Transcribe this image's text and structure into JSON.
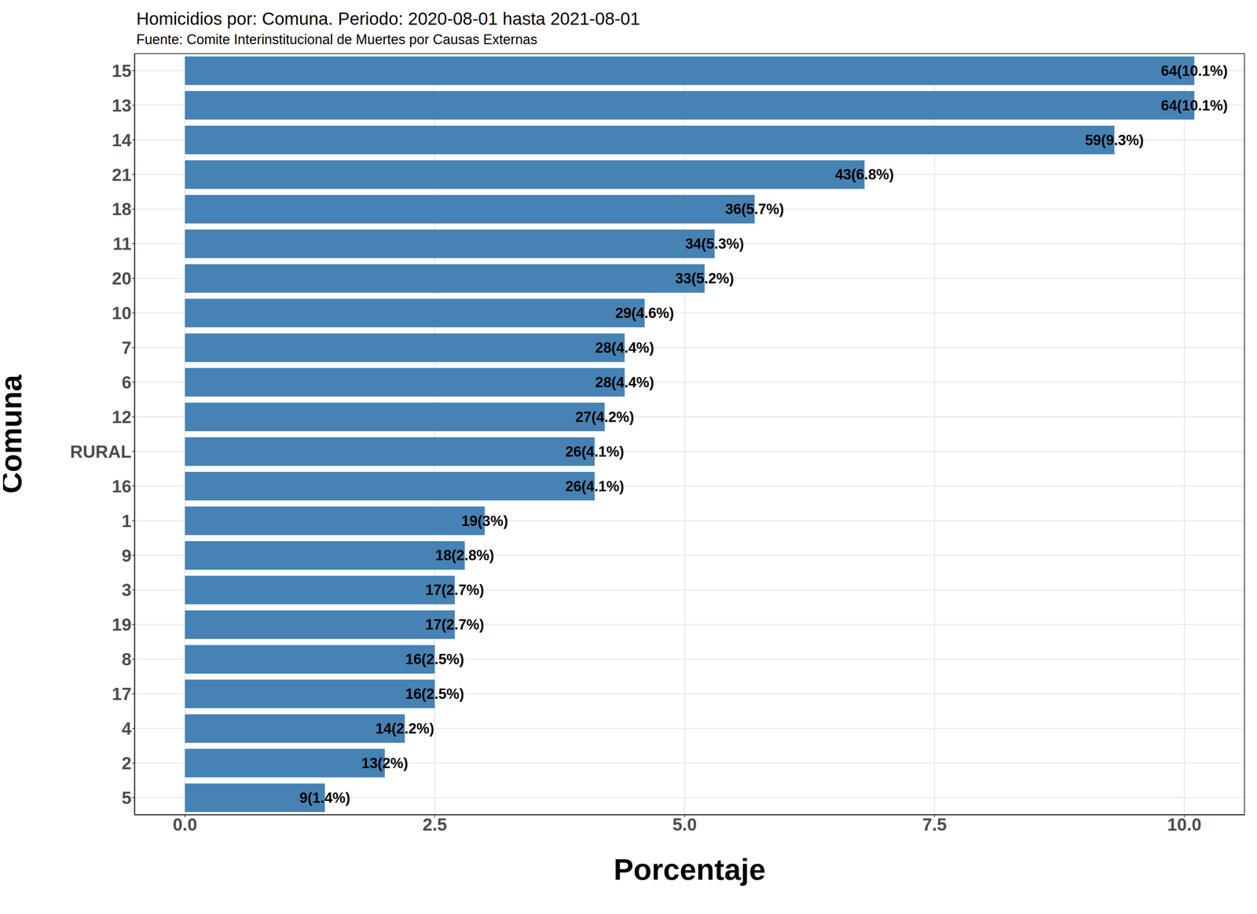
{
  "chart_data": {
    "type": "bar",
    "orientation": "horizontal",
    "title": "Homicidios por: Comuna. Periodo: 2020-08-01 hasta 2021-08-01",
    "subtitle": "Fuente: Comite Interinstitucional de Muertes por Causas Externas",
    "xlabel": "Porcentaje",
    "ylabel": "Comuna",
    "categories": [
      "15",
      "13",
      "14",
      "21",
      "18",
      "11",
      "20",
      "10",
      "7",
      "6",
      "12",
      "RURAL",
      "16",
      "1",
      "9",
      "3",
      "19",
      "8",
      "17",
      "4",
      "2",
      "5"
    ],
    "values": [
      10.1,
      10.1,
      9.3,
      6.8,
      5.7,
      5.3,
      5.2,
      4.6,
      4.4,
      4.4,
      4.2,
      4.1,
      4.1,
      3,
      2.8,
      2.7,
      2.7,
      2.5,
      2.5,
      2.2,
      2,
      1.4
    ],
    "value_labels": [
      "64(10.1%)",
      "64(10.1%)",
      "59(9.3%)",
      "43(6.8%)",
      "36(5.7%)",
      "34(5.3%)",
      "33(5.2%)",
      "29(4.6%)",
      "28(4.4%)",
      "28(4.4%)",
      "27(4.2%)",
      "26(4.1%)",
      "26(4.1%)",
      "19(3%)",
      "18(2.8%)",
      "17(2.7%)",
      "17(2.7%)",
      "16(2.5%)",
      "16(2.5%)",
      "14(2.2%)",
      "13(2%)",
      "9(1.4%)"
    ],
    "color": "#4682b4",
    "xlim": [
      -0.505,
      10.605
    ],
    "xticks": [
      {
        "value": 0,
        "label": "0.0"
      },
      2.5,
      {
        "value": 5,
        "label": "5.0"
      },
      7.5,
      {
        "value": 10,
        "label": "10.0"
      }
    ],
    "grid": true,
    "data_labels": true
  }
}
